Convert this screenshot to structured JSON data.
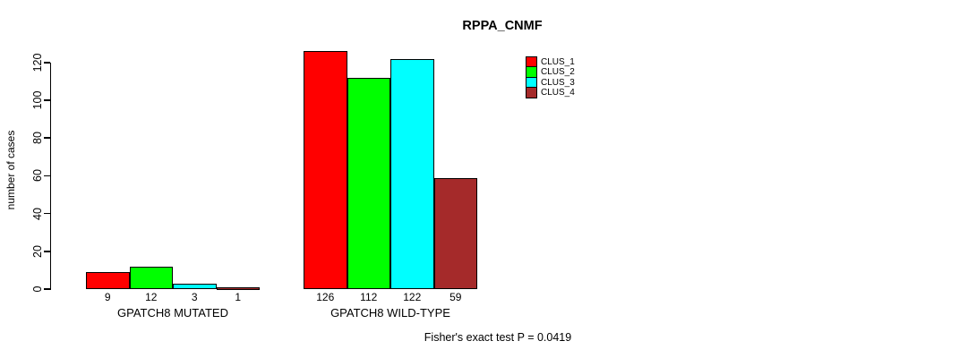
{
  "chart_data": {
    "type": "bar",
    "title": "RPPA_CNMF",
    "ylabel": "number of cases",
    "xlabel": "",
    "categories": [
      "GPATCH8 MUTATED",
      "GPATCH8 WILD-TYPE"
    ],
    "series": [
      {
        "name": "CLUS_1",
        "color": "#ff0000",
        "values": [
          9,
          126
        ]
      },
      {
        "name": "CLUS_2",
        "color": "#00ff00",
        "values": [
          12,
          112
        ]
      },
      {
        "name": "CLUS_3",
        "color": "#00ffff",
        "values": [
          3,
          122
        ]
      },
      {
        "name": "CLUS_4",
        "color": "#a52a2a",
        "values": [
          1,
          59
        ]
      }
    ],
    "yticks": [
      0,
      20,
      40,
      60,
      80,
      100,
      120
    ],
    "ylim": [
      0,
      126
    ],
    "grid": false,
    "bar_value_labels_shown": true,
    "legend_position": "top-right",
    "annotation": "Fisher's exact test P = 0.0419"
  }
}
